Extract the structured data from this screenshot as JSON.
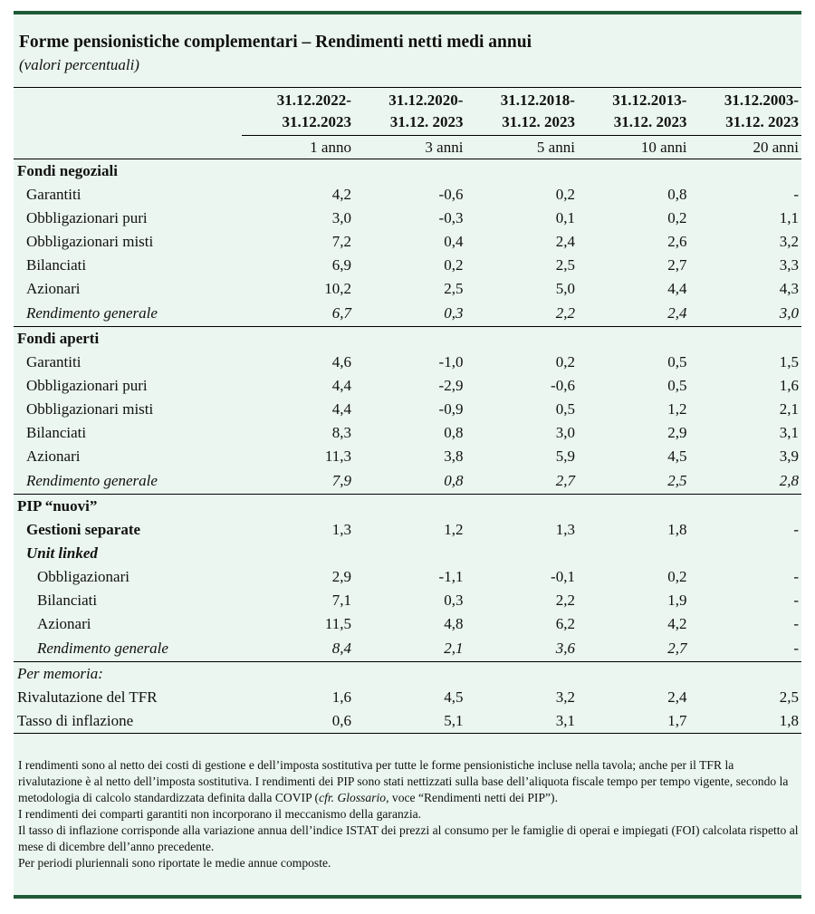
{
  "header": {
    "title": "Forme pensionistiche complementari – Rendimenti netti medi annui",
    "subtitle": "(valori percentuali)"
  },
  "table": {
    "columns": [
      {
        "period": [
          "31.12.2022-",
          "31.12.2023"
        ],
        "horizon": "1 anno"
      },
      {
        "period": [
          "31.12.2020-",
          "31.12. 2023"
        ],
        "horizon": "3 anni"
      },
      {
        "period": [
          "31.12.2018-",
          "31.12. 2023"
        ],
        "horizon": "5 anni"
      },
      {
        "period": [
          "31.12.2013-",
          "31.12. 2023"
        ],
        "horizon": "10 anni"
      },
      {
        "period": [
          "31.12.2003-",
          "31.12. 2023"
        ],
        "horizon": "20 anni"
      }
    ],
    "sections": [
      {
        "title": "Fondi negoziali",
        "rows": [
          {
            "label": "Garantiti",
            "values": [
              "4,2",
              "-0,6",
              "0,2",
              "0,8",
              "-"
            ]
          },
          {
            "label": "Obbligazionari puri",
            "values": [
              "3,0",
              "-0,3",
              "0,1",
              "0,2",
              "1,1"
            ]
          },
          {
            "label": "Obbligazionari misti",
            "values": [
              "7,2",
              "0,4",
              "2,4",
              "2,6",
              "3,2"
            ]
          },
          {
            "label": "Bilanciati",
            "values": [
              "6,9",
              "0,2",
              "2,5",
              "2,7",
              "3,3"
            ]
          },
          {
            "label": "Azionari",
            "values": [
              "10,2",
              "2,5",
              "5,0",
              "4,4",
              "4,3"
            ]
          }
        ],
        "summary": {
          "label": "Rendimento generale",
          "values": [
            "6,7",
            "0,3",
            "2,2",
            "2,4",
            "3,0"
          ]
        }
      },
      {
        "title": "Fondi aperti",
        "rows": [
          {
            "label": "Garantiti",
            "values": [
              "4,6",
              "-1,0",
              "0,2",
              "0,5",
              "1,5"
            ]
          },
          {
            "label": "Obbligazionari puri",
            "values": [
              "4,4",
              "-2,9",
              "-0,6",
              "0,5",
              "1,6"
            ]
          },
          {
            "label": "Obbligazionari misti",
            "values": [
              "4,4",
              "-0,9",
              "0,5",
              "1,2",
              "2,1"
            ]
          },
          {
            "label": "Bilanciati",
            "values": [
              "8,3",
              "0,8",
              "3,0",
              "2,9",
              "3,1"
            ]
          },
          {
            "label": "Azionari",
            "values": [
              "11,3",
              "3,8",
              "5,9",
              "4,5",
              "3,9"
            ]
          }
        ],
        "summary": {
          "label": "Rendimento generale",
          "values": [
            "7,9",
            "0,8",
            "2,7",
            "2,5",
            "2,8"
          ]
        }
      },
      {
        "title": "PIP “nuovi”",
        "rows": [
          {
            "label": "Gestioni separate",
            "values": [
              "1,3",
              "1,2",
              "1,3",
              "1,8",
              "-"
            ]
          }
        ],
        "subsection": {
          "title": "Unit linked",
          "rows": [
            {
              "label": "Obbligazionari",
              "values": [
                "2,9",
                "-1,1",
                "-0,1",
                "0,2",
                "-"
              ]
            },
            {
              "label": "Bilanciati",
              "values": [
                "7,1",
                "0,3",
                "2,2",
                "1,9",
                "-"
              ]
            },
            {
              "label": "Azionari",
              "values": [
                "11,5",
                "4,8",
                "6,2",
                "4,2",
                "-"
              ]
            }
          ],
          "summary": {
            "label": "Rendimento generale",
            "values": [
              "8,4",
              "2,1",
              "3,6",
              "2,7",
              "-"
            ]
          }
        }
      }
    ],
    "memo": {
      "title": "Per memoria:",
      "rows": [
        {
          "label": "Rivalutazione del TFR",
          "values": [
            "1,6",
            "4,5",
            "3,2",
            "2,4",
            "2,5"
          ]
        },
        {
          "label": "Tasso di inflazione",
          "values": [
            "0,6",
            "5,1",
            "3,1",
            "1,7",
            "1,8"
          ]
        }
      ]
    }
  },
  "notes": [
    [
      "I rendimenti sono al netto dei costi di gestione e dell’imposta sostitutiva per tutte le forme pensionistiche incluse nella tavola; anche per il TFR la rivalutazione è al netto dell’imposta sostitutiva. I rendimenti dei PIP sono stati nettizzati sulla base dell’aliquota fiscale tempo per tempo vigente, secondo la metodologia di calcolo standardizzata definita dalla COVIP (",
      "cfr. Glossario",
      ", voce “Rendimenti netti dei PIP”)."
    ],
    [
      "I rendimenti dei comparti garantiti non incorporano il meccanismo della garanzia."
    ],
    [
      "Il tasso di inflazione corrisponde alla variazione annua dell’indice ISTAT dei prezzi al consumo per le famiglie di operai e impiegati (FOI) calcolata rispetto al mese di dicembre dell’anno precedente."
    ],
    [
      "Per periodi pluriennali sono riportate le medie annue composte."
    ]
  ]
}
